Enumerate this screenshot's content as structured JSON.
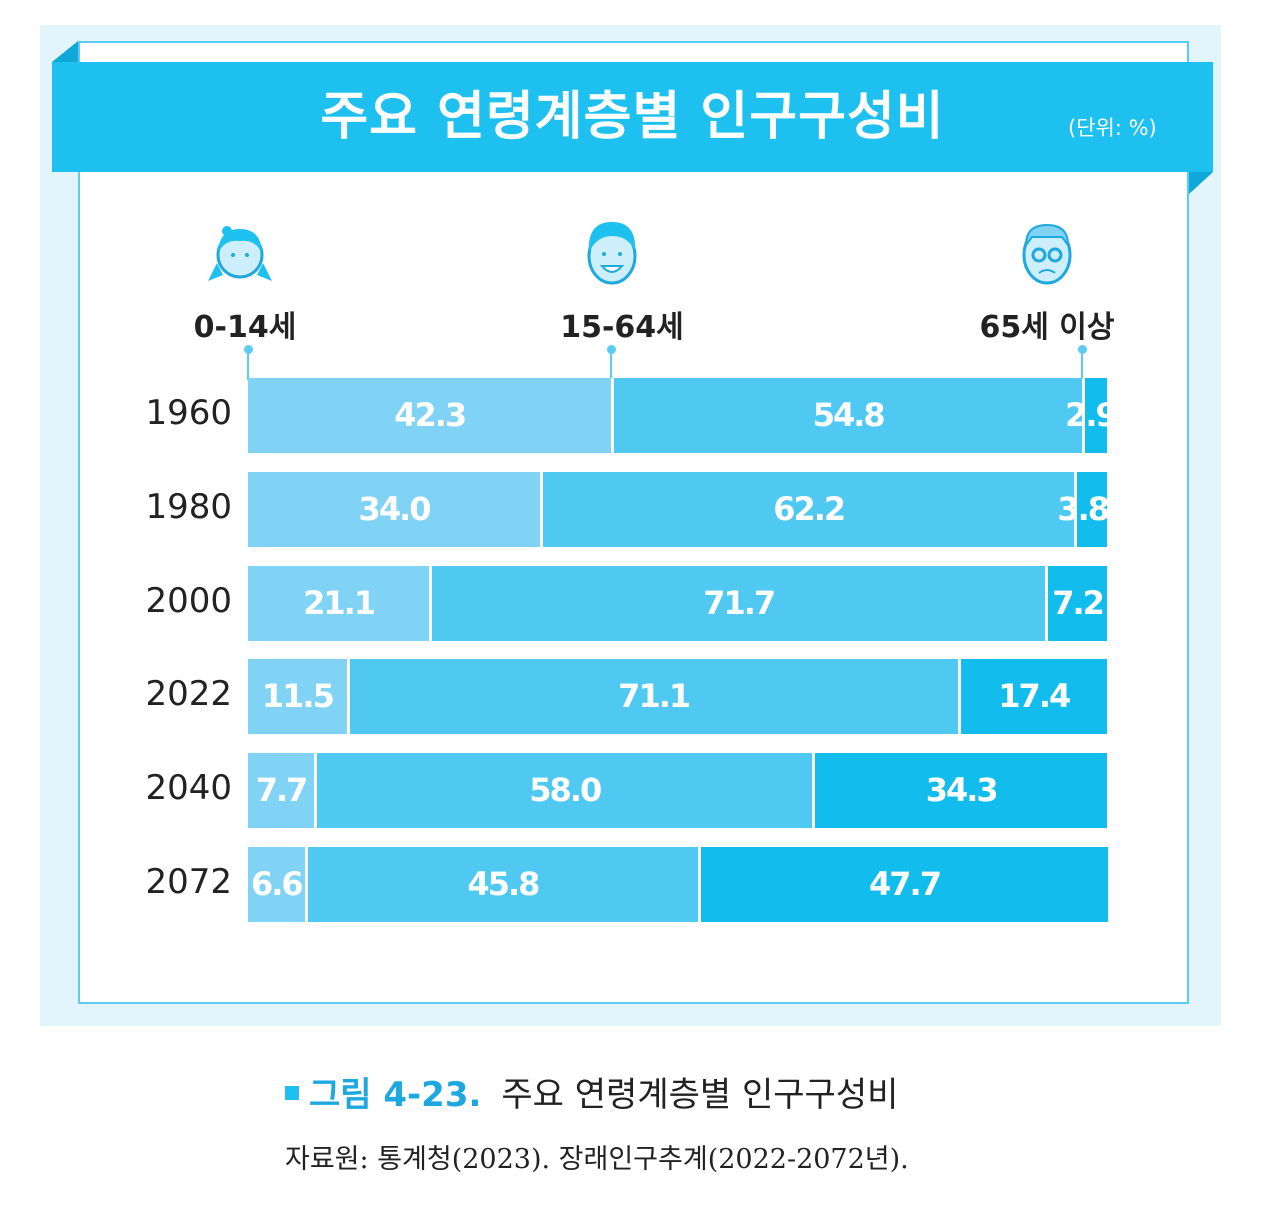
{
  "colors": {
    "age_0_14": "#80d3f5",
    "age_15_64": "#4fc9f1",
    "age_65_plus": "#12bdee",
    "band": "#1ec0ef"
  },
  "chart_data": {
    "type": "bar",
    "stacked": true,
    "orientation": "horizontal",
    "title": "주요 연령계층별 인구구성비",
    "unit": "(단위: %)",
    "categories": [
      "1960",
      "1980",
      "2000",
      "2022",
      "2040",
      "2072"
    ],
    "series": [
      {
        "name": "0-14세",
        "values": [
          42.3,
          34.0,
          21.1,
          11.5,
          7.7,
          6.6
        ],
        "labels": [
          "42.3",
          "34.0",
          "21.1",
          "11.5",
          "7.7",
          "6.6"
        ]
      },
      {
        "name": "15-64세",
        "values": [
          54.8,
          62.2,
          71.7,
          71.1,
          58.0,
          45.8
        ],
        "labels": [
          "54.8",
          "62.2",
          "71.7",
          "71.1",
          "58.0",
          "45.8"
        ]
      },
      {
        "name": "65세 이상",
        "values": [
          2.9,
          3.8,
          7.2,
          17.4,
          34.3,
          47.7
        ],
        "labels": [
          "2.9",
          "3.8",
          "7.2",
          "17.4",
          "34.3",
          "47.7"
        ]
      }
    ],
    "xlim": [
      0,
      100
    ]
  },
  "caption": {
    "figure": "그림 4-23.",
    "text": "주요 연령계층별 인구구성비"
  },
  "source": "자료원: 통계청(2023). 장래인구추계(2022-2072년)."
}
